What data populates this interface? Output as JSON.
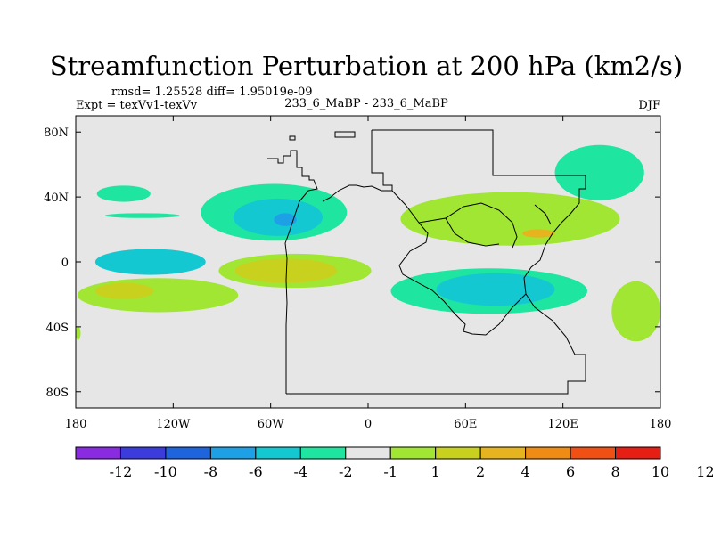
{
  "chart_data": {
    "type": "contour-map",
    "title": "Streamfunction Perturbation at 200 hPa (km2/s)",
    "stats_text": "rmsd= 1.25528 diff= 1.95019e-09",
    "left_label": "Expt = texVv1-texVv",
    "center_label": "233_6_MaBP - 233_6_MaBP",
    "right_label": "DJF",
    "xlim": [
      -180,
      180
    ],
    "ylim": [
      -90,
      90
    ],
    "x_ticks": [
      {
        "value": -180,
        "label": "180"
      },
      {
        "value": -120,
        "label": "120W"
      },
      {
        "value": -60,
        "label": "60W"
      },
      {
        "value": 0,
        "label": "0"
      },
      {
        "value": 60,
        "label": "60E"
      },
      {
        "value": 120,
        "label": "120E"
      },
      {
        "value": 180,
        "label": "180"
      }
    ],
    "y_ticks": [
      {
        "value": 80,
        "label": "80N"
      },
      {
        "value": 40,
        "label": "40N"
      },
      {
        "value": 0,
        "label": "0"
      },
      {
        "value": -40,
        "label": "40S"
      },
      {
        "value": -80,
        "label": "80S"
      }
    ],
    "colorbar": {
      "colors": [
        "#8a2be2",
        "#3c3cdc",
        "#1e64dc",
        "#1ea0e6",
        "#14c8d2",
        "#1ee6a0",
        "#e6e6e6",
        "#a0e632",
        "#c8d21e",
        "#e6b41e",
        "#f08c14",
        "#f05014",
        "#e61e14"
      ],
      "labels": [
        "-12",
        "-10",
        "-8",
        "-6",
        "-4",
        "-2",
        "-1",
        "1",
        "2",
        "4",
        "6",
        "8",
        "10",
        "12"
      ]
    },
    "level_colors": {
      "neg2": "#1ee6a0",
      "neg4": "#14c8d2",
      "neg6": "#1ea0e6",
      "pos1": "#a0e632",
      "pos2": "#c8d21e",
      "pos4": "#e6b41e",
      "background": "#e6e6e6"
    },
    "anomalies": [
      {
        "name": "nw-pacific-trough",
        "level": -2,
        "lon_range": [
          -167,
          -134
        ],
        "lat_range": [
          37,
          47
        ]
      },
      {
        "name": "east-pacific-small-trough",
        "level": -2,
        "lon_range": [
          -162,
          -116
        ],
        "lat_range": [
          27,
          30
        ]
      },
      {
        "name": "south-atlantic-trough",
        "level": -2,
        "lon_range": [
          -103,
          -13
        ],
        "lat_range": [
          13,
          48
        ]
      },
      {
        "name": "south-atlantic-trough-inner",
        "level": -4,
        "lon_range": [
          -83,
          -28
        ],
        "lat_range": [
          16,
          39
        ]
      },
      {
        "name": "south-atlantic-trough-core",
        "level": -6,
        "lon_range": [
          -58,
          -44
        ],
        "lat_range": [
          22,
          30
        ]
      },
      {
        "name": "tropical-pacific-trough",
        "level": -4,
        "lon_range": [
          -168,
          -100
        ],
        "lat_range": [
          -8,
          8
        ]
      },
      {
        "name": "southern-africa-ridge",
        "level": 1,
        "lon_range": [
          -92,
          2
        ],
        "lat_range": [
          -16,
          5
        ]
      },
      {
        "name": "southern-africa-ridge-core",
        "level": 2,
        "lon_range": [
          -82,
          -19
        ],
        "lat_range": [
          -13,
          2
        ]
      },
      {
        "name": "se-pacific-ridge",
        "level": 1,
        "lon_range": [
          -179,
          -80
        ],
        "lat_range": [
          -31,
          -10
        ]
      },
      {
        "name": "se-pacific-ridge-core",
        "level": 2,
        "lon_range": [
          -168,
          -132
        ],
        "lat_range": [
          -23,
          -13
        ]
      },
      {
        "name": "indian-ocean-trough",
        "level": -2,
        "lon_range": [
          14,
          135
        ],
        "lat_range": [
          -32,
          -4
        ]
      },
      {
        "name": "indian-ocean-trough-core",
        "level": -4,
        "lon_range": [
          42,
          115
        ],
        "lat_range": [
          -27,
          -7
        ]
      },
      {
        "name": "asia-ridge",
        "level": 1,
        "lon_range": [
          20,
          155
        ],
        "lat_range": [
          10,
          43
        ]
      },
      {
        "name": "asia-ridge-core",
        "level": 4,
        "lon_range": [
          95,
          115
        ],
        "lat_range": [
          15,
          20
        ]
      },
      {
        "name": "nw-pacific-trough-east",
        "level": -2,
        "lon_range": [
          115,
          170
        ],
        "lat_range": [
          38,
          72
        ]
      },
      {
        "name": "south-pacific-ridge",
        "level": 1,
        "lon_range": [
          150,
          180
        ],
        "lat_range": [
          -49,
          -12
        ]
      },
      {
        "name": "south-pacific-ridge-west-edge",
        "level": 1,
        "lon_range": [
          -180,
          -177
        ],
        "lat_range": [
          -48,
          -40
        ]
      }
    ]
  }
}
